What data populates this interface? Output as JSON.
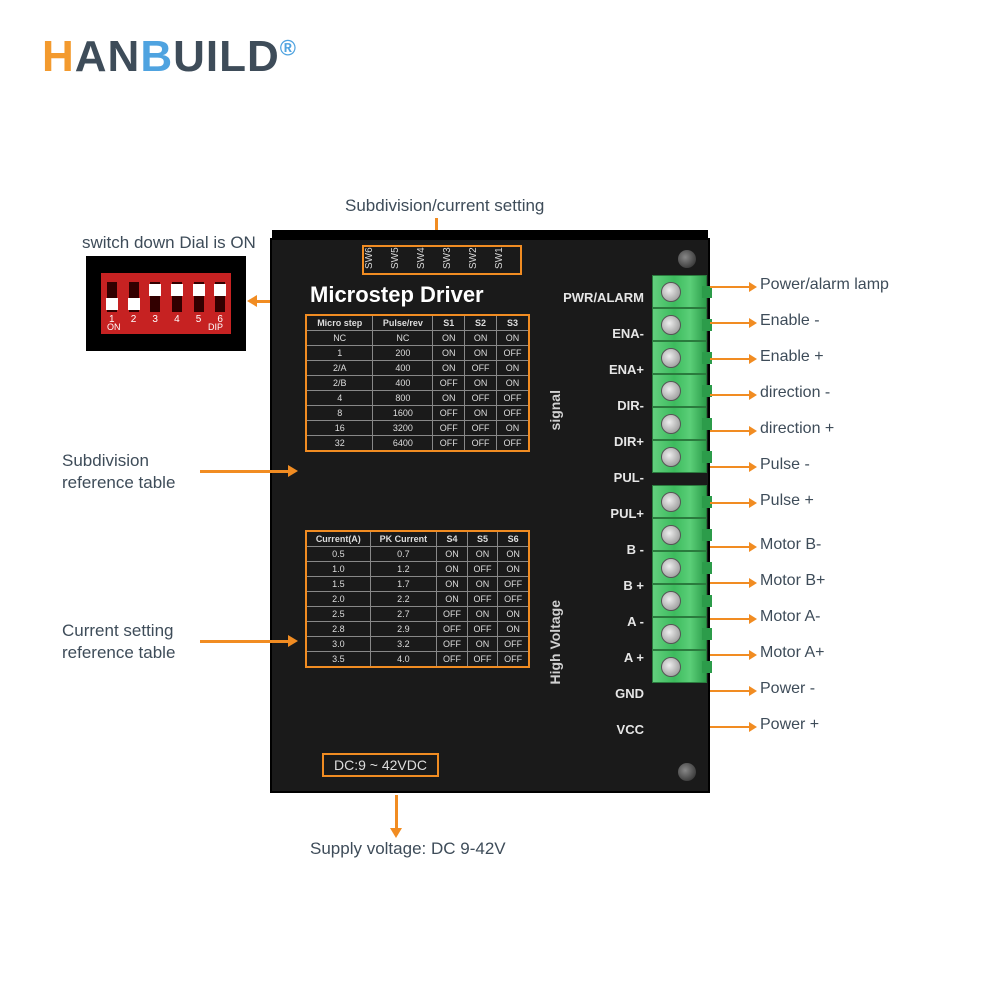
{
  "logo": {
    "h": "H",
    "an": "AN",
    "b": "B",
    "uild": "UILD",
    "reg": "®"
  },
  "callouts": {
    "subdivSetting": "Subdivision/current setting",
    "switchDown": "switch down Dial is ON",
    "subdivTable": "Subdivision\nreference table",
    "currTable": "Current setting\nreference table",
    "supply": "Supply voltage: DC 9-42V",
    "dcBox": "DC:9 ~ 42VDC"
  },
  "diplabels": [
    "SW6",
    "SW5",
    "SW4",
    "SW3",
    "SW2",
    "SW1"
  ],
  "driverTitle": "Microstep Driver",
  "sideText": {
    "signal": "signal",
    "highVoltage": "High Voltage"
  },
  "tblMicro": {
    "head": [
      "Micro step",
      "Pulse/rev",
      "S1",
      "S2",
      "S3"
    ],
    "rows": [
      [
        "NC",
        "NC",
        "ON",
        "ON",
        "ON"
      ],
      [
        "1",
        "200",
        "ON",
        "ON",
        "OFF"
      ],
      [
        "2/A",
        "400",
        "ON",
        "OFF",
        "ON"
      ],
      [
        "2/B",
        "400",
        "OFF",
        "ON",
        "ON"
      ],
      [
        "4",
        "800",
        "ON",
        "OFF",
        "OFF"
      ],
      [
        "8",
        "1600",
        "OFF",
        "ON",
        "OFF"
      ],
      [
        "16",
        "3200",
        "OFF",
        "OFF",
        "ON"
      ],
      [
        "32",
        "6400",
        "OFF",
        "OFF",
        "OFF"
      ]
    ]
  },
  "tblCurr": {
    "head": [
      "Current(A)",
      "PK Current",
      "S4",
      "S5",
      "S6"
    ],
    "rows": [
      [
        "0.5",
        "0.7",
        "ON",
        "ON",
        "ON"
      ],
      [
        "1.0",
        "1.2",
        "ON",
        "OFF",
        "ON"
      ],
      [
        "1.5",
        "1.7",
        "ON",
        "ON",
        "OFF"
      ],
      [
        "2.0",
        "2.2",
        "ON",
        "OFF",
        "OFF"
      ],
      [
        "2.5",
        "2.7",
        "OFF",
        "ON",
        "ON"
      ],
      [
        "2.8",
        "2.9",
        "OFF",
        "OFF",
        "ON"
      ],
      [
        "3.0",
        "3.2",
        "OFF",
        "ON",
        "OFF"
      ],
      [
        "3.5",
        "4.0",
        "OFF",
        "OFF",
        "OFF"
      ]
    ]
  },
  "pins": [
    "PWR/ALARM",
    "ENA-",
    "ENA+",
    "DIR-",
    "DIR+",
    "PUL-",
    "PUL+",
    "B -",
    "B +",
    "A -",
    "A +",
    "GND",
    "VCC"
  ],
  "pinDesc": [
    "Power/alarm lamp",
    "Enable -",
    "Enable +",
    "direction -",
    "direction +",
    "Pulse -",
    "Pulse +",
    "Motor B-",
    "Motor B+",
    "Motor A-",
    "Motor A+",
    "Power -",
    "Power +"
  ],
  "dip": {
    "count": 6,
    "on": "ON",
    "dip": "DIP"
  },
  "colors": {
    "orange": "#F18C22",
    "logoOrange": "#F39A2E",
    "logoBlue": "#4FA3E0",
    "dark": "#3E4C59",
    "term": "#3dbb5e",
    "red": "#C62222"
  }
}
